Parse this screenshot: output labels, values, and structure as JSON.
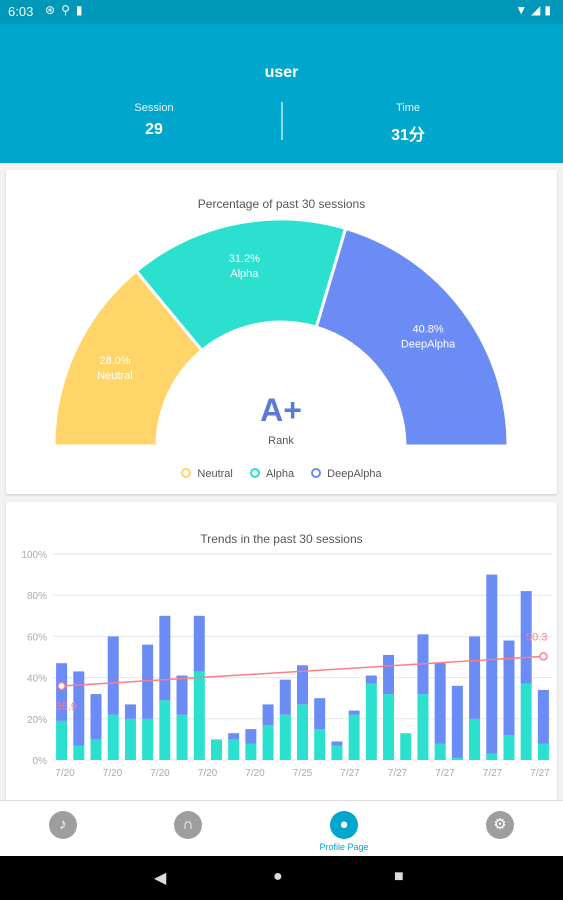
{
  "status_bar": {
    "time": "6:03",
    "left_icons": [
      "data-saver-icon",
      "usb-icon",
      "sd-card-icon"
    ],
    "right_icons": [
      "wifi-icon",
      "signal-icon",
      "battery-icon"
    ]
  },
  "header": {
    "username": "user",
    "session_label": "Session",
    "session_value": "29",
    "time_label": "Time",
    "time_value": "31分"
  },
  "gauge_card": {
    "title": "Percentage of past 30 sessions",
    "rank_value": "A+",
    "rank_label": "Rank",
    "legend": [
      "Neutral",
      "Alpha",
      "DeepAlpha"
    ]
  },
  "trend_card": {
    "title": "Trends in the past 30 sessions"
  },
  "bottom_nav": {
    "active_label": "Profile Page",
    "items": [
      "music-icon",
      "headphones-icon",
      "profile-icon",
      "settings-icon"
    ]
  },
  "colors": {
    "neutral": "#ffd56a",
    "alpha": "#2be0cf",
    "deepalpha": "#6b8bf5",
    "trend": "#ff7c8a",
    "accent": "#00a6cc"
  },
  "chart_data": [
    {
      "type": "pie",
      "title": "Percentage of past 30 sessions",
      "labels": [
        "Neutral",
        "Alpha",
        "DeepAlpha"
      ],
      "values": [
        28.0,
        31.2,
        40.8
      ],
      "value_labels": [
        "28.0%",
        "31.2%",
        "40.8%"
      ],
      "variant": "semicircle-donut"
    },
    {
      "type": "bar",
      "title": "Trends in the past 30 sessions",
      "stacked": true,
      "ylim": [
        0,
        100
      ],
      "yticks": [
        "0%",
        "20%",
        "40%",
        "60%",
        "80%",
        "100%"
      ],
      "x_tick_labels": [
        "7/20",
        "7/20",
        "7/20",
        "7/20",
        "7/20",
        "7/25",
        "7/27",
        "7/27",
        "7/27",
        "7/27",
        "7/27"
      ],
      "series": [
        {
          "name": "Alpha",
          "values": [
            19,
            7,
            10,
            22,
            20,
            20,
            29,
            22,
            43,
            10,
            10,
            8,
            17,
            22,
            27,
            15,
            7,
            22,
            37,
            32,
            13,
            32,
            8,
            1,
            20,
            3,
            12,
            37,
            8
          ]
        },
        {
          "name": "DeepAlpha",
          "values": [
            28,
            36,
            22,
            38,
            7,
            36,
            41,
            19,
            27,
            0,
            3,
            7,
            10,
            17,
            19,
            15,
            2,
            2,
            4,
            19,
            0,
            29,
            39,
            35,
            40,
            87,
            46,
            45,
            26
          ]
        }
      ],
      "trend_line": {
        "start": 35.9,
        "end": 50.3,
        "start_label": "35.9",
        "end_label": "50.3"
      },
      "grid": true
    }
  ]
}
